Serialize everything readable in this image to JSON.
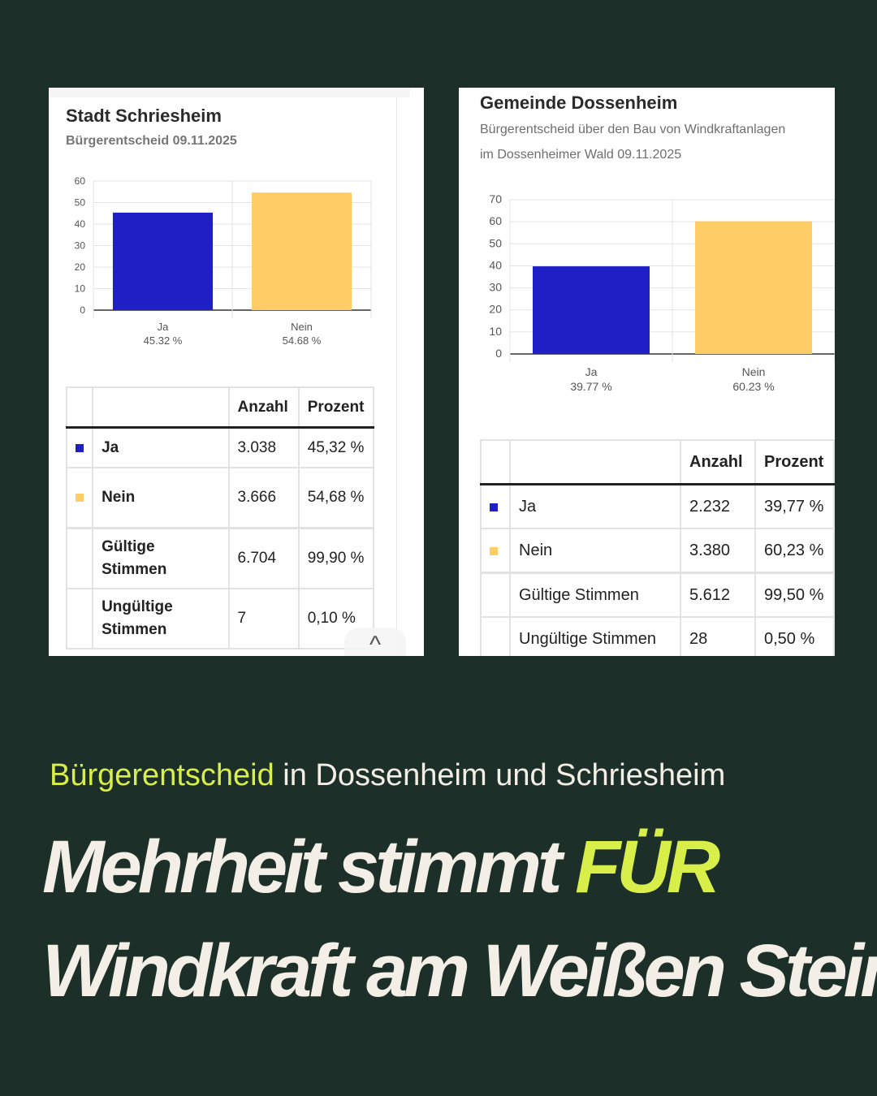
{
  "cards": [
    {
      "title": "Stadt Schriesheim",
      "subtitle_lines": [
        "Bürgerentscheid 09.11.2025"
      ],
      "table": {
        "headers": [
          "Anzahl",
          "Prozent"
        ],
        "rows": [
          {
            "label": "Ja",
            "count": "3.038",
            "percent": "45,32 %"
          },
          {
            "label": "Nein",
            "count": "3.666",
            "percent": "54,68 %"
          },
          {
            "label": "Gültige Stimmen",
            "count": "6.704",
            "percent": "99,90 %"
          },
          {
            "label": "Ungültige Stimmen",
            "count": "7",
            "percent": "0,10 %"
          }
        ]
      }
    },
    {
      "title": "Gemeinde Dossenheim",
      "subtitle_lines": [
        "Bürgerentscheid über den Bau von Windkraftanlagen",
        "im Dossenheimer Wald 09.11.2025"
      ],
      "table": {
        "headers": [
          "Anzahl",
          "Prozent"
        ],
        "rows": [
          {
            "label": "Ja",
            "count": "2.232",
            "percent": "39,77 %"
          },
          {
            "label": "Nein",
            "count": "3.380",
            "percent": "60,23 %"
          },
          {
            "label": "Gültige Stimmen",
            "count": "5.612",
            "percent": "99,50 %"
          },
          {
            "label": "Ungültige Stimmen",
            "count": "28",
            "percent": "0,50 %"
          }
        ]
      }
    }
  ],
  "colors": {
    "ja": "#1e20c6",
    "nein": "#ffcc66",
    "background": "#1c2f28",
    "accent": "#d8ef4a",
    "text": "#f4efe6"
  },
  "scroll_icon": "chevron-up-icon",
  "scroll_glyph": "^",
  "headline": {
    "kicker_highlight": "Bürgerentscheid",
    "kicker_rest": " in Dossenheim und Schriesheim",
    "line1_main": "Mehrheit stimmt ",
    "line1_highlight": "FÜR",
    "line2": "Windkraft am Weißen Stein"
  },
  "chart_data": [
    {
      "type": "bar",
      "title": "Stadt Schriesheim",
      "categories": [
        "Ja",
        "Nein"
      ],
      "category_sublabels": [
        "45.32 %",
        "54.68 %"
      ],
      "values": [
        45.32,
        54.68
      ],
      "ylim": [
        0,
        60
      ],
      "yticks": [
        0,
        10,
        20,
        30,
        40,
        50,
        60
      ],
      "grid": true,
      "xlabel": "",
      "ylabel": ""
    },
    {
      "type": "bar",
      "title": "Gemeinde Dossenheim",
      "categories": [
        "Ja",
        "Nein"
      ],
      "category_sublabels": [
        "39.77 %",
        "60.23 %"
      ],
      "values": [
        39.77,
        60.23
      ],
      "ylim": [
        0,
        70
      ],
      "yticks": [
        0,
        10,
        20,
        30,
        40,
        50,
        60,
        70
      ],
      "grid": true,
      "xlabel": "",
      "ylabel": ""
    }
  ]
}
